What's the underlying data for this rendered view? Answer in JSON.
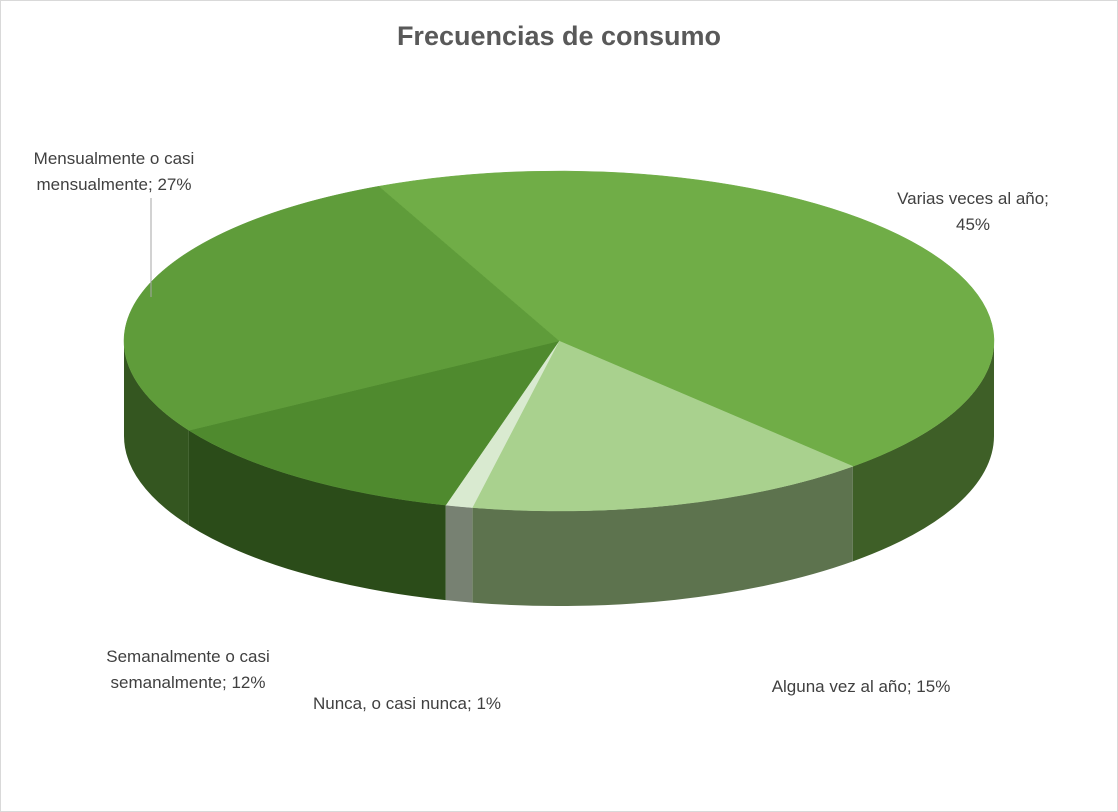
{
  "chart_data": {
    "type": "pie3d",
    "title": "Frecuencias de consumo",
    "values": [
      45,
      15,
      1,
      12,
      27
    ],
    "value_labels": [
      "Varias veces al año; 45%",
      "Alguna vez al año; 15%",
      "Nunca, o casi nunca; 1%",
      "Semanalmente o casi semanalmente; 12%",
      "Mensualmente o casi mensualmente; 27%"
    ],
    "colors": [
      "#70ad47",
      "#a9d18e",
      "#d9ead0",
      "#4f8a2e",
      "#5f9c3a"
    ]
  }
}
